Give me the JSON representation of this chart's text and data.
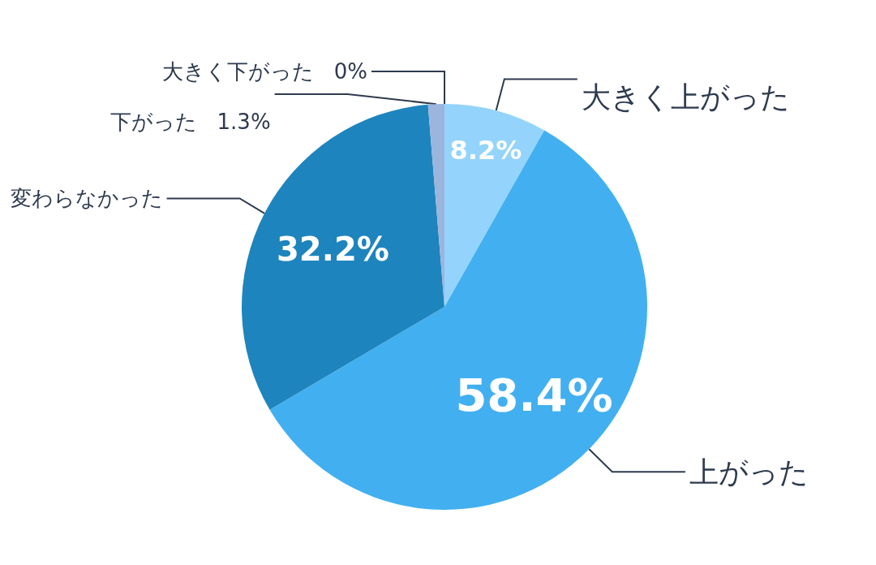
{
  "chart_data": {
    "type": "pie",
    "categories": [
      "大きく上がった",
      "上がった",
      "変わらなかった",
      "下がった",
      "大きく下がった"
    ],
    "values": [
      8.2,
      58.4,
      32.2,
      1.3,
      0
    ],
    "colors": [
      "#94d4fc",
      "#42b0f0",
      "#1e84bd",
      "#9bb5dd",
      "#6f8fc4"
    ],
    "value_labels": [
      "8.2%",
      "58.4%",
      "32.2%",
      "1.3%",
      "0%"
    ],
    "legend": false
  }
}
